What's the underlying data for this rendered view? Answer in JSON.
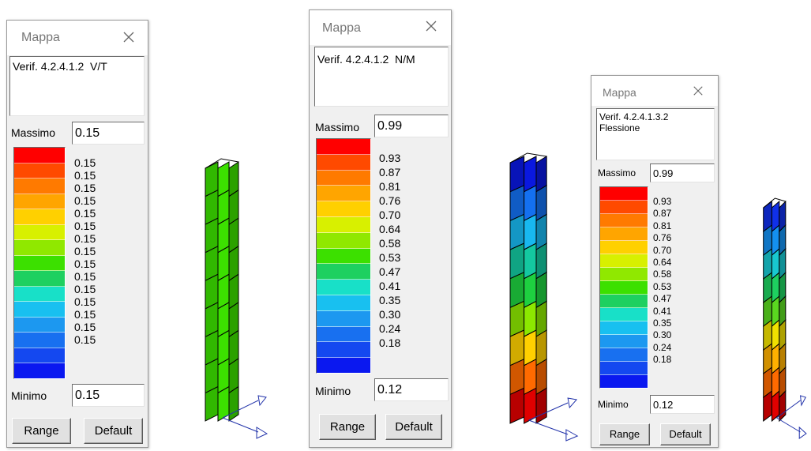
{
  "panels": [
    {
      "title": "Mappa",
      "description": "Verif. 4.2.4.1.2  V/T",
      "max_label": "Massimo",
      "max_value": "0.15",
      "min_label": "Minimo",
      "min_value": "0.15",
      "legend_colors": [
        "#ff0000",
        "#ff4a00",
        "#ff7a00",
        "#ffa500",
        "#ffd000",
        "#d8f000",
        "#90e800",
        "#3ce000",
        "#1ed060",
        "#18e0c8",
        "#18c0f0",
        "#1c98f0",
        "#1870f0",
        "#1448f0",
        "#0a18f0"
      ],
      "legend_values": [
        "0.15",
        "0.15",
        "0.15",
        "0.15",
        "0.15",
        "0.15",
        "0.15",
        "0.15",
        "0.15",
        "0.15",
        "0.15",
        "0.15",
        "0.15",
        "0.15",
        "0.15"
      ],
      "range_label": "Range",
      "default_label": "Default"
    },
    {
      "title": "Mappa",
      "description": "Verif. 4.2.4.1.2  N/M",
      "max_label": "Massimo",
      "max_value": "0.99",
      "min_label": "Minimo",
      "min_value": "0.12",
      "legend_colors": [
        "#ff0000",
        "#ff4a00",
        "#ff7a00",
        "#ffa500",
        "#ffd000",
        "#d8f000",
        "#90e800",
        "#3ce000",
        "#1ed060",
        "#18e0c8",
        "#18c0f0",
        "#1c98f0",
        "#1870f0",
        "#1448f0",
        "#0a18f0"
      ],
      "legend_values": [
        "0.93",
        "0.87",
        "0.81",
        "0.76",
        "0.70",
        "0.64",
        "0.58",
        "0.53",
        "0.47",
        "0.41",
        "0.35",
        "0.30",
        "0.24",
        "0.18"
      ],
      "range_label": "Range",
      "default_label": "Default"
    },
    {
      "title": "Mappa",
      "description": "Verif. 4.2.4.1.3.2\nFlessione",
      "max_label": "Massimo",
      "max_value": "0.99",
      "min_label": "Minimo",
      "min_value": "0.12",
      "legend_colors": [
        "#ff0000",
        "#ff4a00",
        "#ff7a00",
        "#ffa500",
        "#ffd000",
        "#d8f000",
        "#90e800",
        "#3ce000",
        "#1ed060",
        "#18e0c8",
        "#18c0f0",
        "#1c98f0",
        "#1870f0",
        "#1448f0",
        "#0a18f0"
      ],
      "legend_values": [
        "0.93",
        "0.87",
        "0.81",
        "0.76",
        "0.70",
        "0.64",
        "0.58",
        "0.53",
        "0.47",
        "0.41",
        "0.35",
        "0.30",
        "0.24",
        "0.18"
      ],
      "range_label": "Range",
      "default_label": "Default"
    }
  ],
  "views": [
    {
      "segment_colors": [
        "#3ce000",
        "#3ce000",
        "#3ce000",
        "#3ce000",
        "#3ce000",
        "#3ce000",
        "#3ce000",
        "#3ce000",
        "#3ce000"
      ]
    },
    {
      "segment_colors": [
        "#e00000",
        "#ff6a00",
        "#ffd000",
        "#8ce800",
        "#1ed040",
        "#14c8a0",
        "#18b8f0",
        "#1470f0",
        "#0a18e0"
      ]
    },
    {
      "segment_colors": [
        "#e00000",
        "#ff6a00",
        "#ffb000",
        "#f0e000",
        "#5ad820",
        "#1ed060",
        "#18c8d0",
        "#1490f0",
        "#1030e8"
      ]
    }
  ]
}
